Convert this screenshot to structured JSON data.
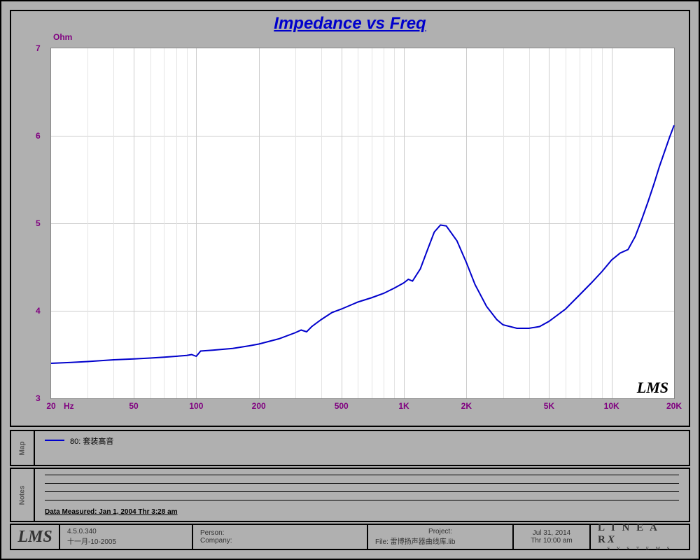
{
  "chart": {
    "type": "line",
    "title": "Impedance vs Freq",
    "ylabel": "Ohm",
    "xlabel_unit": "Hz",
    "x_scale": "log",
    "y_scale": "linear",
    "xlim": [
      20,
      20000
    ],
    "ylim": [
      3,
      7
    ],
    "ytick_step": 1,
    "x_major_ticks": [
      20,
      50,
      100,
      200,
      500,
      1000,
      2000,
      5000,
      10000,
      20000
    ],
    "x_tick_labels": [
      "20",
      "50",
      "100",
      "200",
      "500",
      "1K",
      "2K",
      "5K",
      "10K",
      "20K"
    ],
    "x_minor_ticks": [
      30,
      40,
      60,
      70,
      80,
      90,
      300,
      400,
      600,
      700,
      800,
      900,
      3000,
      4000,
      6000,
      7000,
      8000,
      9000
    ],
    "line_color": "#0000cc",
    "line_width": 2,
    "background_color": "#ffffff",
    "grid_color": "#cccccc",
    "minor_grid_color": "#e4e4e4",
    "axis_label_color": "#800080",
    "title_color": "#0000cc",
    "title_fontsize": 24,
    "tick_fontsize": 12,
    "watermark": "LMS",
    "series": {
      "name": "80: 套装高音",
      "data": [
        [
          20,
          3.4
        ],
        [
          25,
          3.41
        ],
        [
          30,
          3.42
        ],
        [
          40,
          3.44
        ],
        [
          50,
          3.45
        ],
        [
          60,
          3.46
        ],
        [
          70,
          3.47
        ],
        [
          80,
          3.48
        ],
        [
          90,
          3.49
        ],
        [
          95,
          3.5
        ],
        [
          100,
          3.48
        ],
        [
          105,
          3.54
        ],
        [
          120,
          3.55
        ],
        [
          150,
          3.57
        ],
        [
          180,
          3.6
        ],
        [
          200,
          3.62
        ],
        [
          250,
          3.68
        ],
        [
          300,
          3.75
        ],
        [
          320,
          3.78
        ],
        [
          340,
          3.76
        ],
        [
          360,
          3.82
        ],
        [
          400,
          3.9
        ],
        [
          450,
          3.98
        ],
        [
          500,
          4.02
        ],
        [
          600,
          4.1
        ],
        [
          700,
          4.15
        ],
        [
          800,
          4.2
        ],
        [
          900,
          4.26
        ],
        [
          1000,
          4.32
        ],
        [
          1050,
          4.36
        ],
        [
          1100,
          4.34
        ],
        [
          1200,
          4.48
        ],
        [
          1300,
          4.7
        ],
        [
          1400,
          4.9
        ],
        [
          1500,
          4.98
        ],
        [
          1600,
          4.97
        ],
        [
          1800,
          4.8
        ],
        [
          2000,
          4.55
        ],
        [
          2200,
          4.3
        ],
        [
          2500,
          4.05
        ],
        [
          2800,
          3.9
        ],
        [
          3000,
          3.84
        ],
        [
          3500,
          3.8
        ],
        [
          4000,
          3.8
        ],
        [
          4500,
          3.82
        ],
        [
          5000,
          3.88
        ],
        [
          6000,
          4.02
        ],
        [
          7000,
          4.18
        ],
        [
          8000,
          4.32
        ],
        [
          9000,
          4.45
        ],
        [
          10000,
          4.58
        ],
        [
          11000,
          4.66
        ],
        [
          12000,
          4.7
        ],
        [
          13000,
          4.85
        ],
        [
          14000,
          5.05
        ],
        [
          15000,
          5.25
        ],
        [
          16000,
          5.45
        ],
        [
          17000,
          5.65
        ],
        [
          18000,
          5.82
        ],
        [
          19000,
          5.98
        ],
        [
          20000,
          6.12
        ]
      ]
    }
  },
  "legend": {
    "tab_label": "Map",
    "item_label": "80: 套装高音"
  },
  "notes": {
    "tab_label": "Notes",
    "measured_text": "Data Measured: Jan  1, 2004  Thr  3:28 am"
  },
  "footer": {
    "logo": "LMS",
    "version_line1": "4.5.0.340",
    "version_line2": "十一月-10-2005",
    "person_label": "Person:",
    "company_label": "Company:",
    "project_label": "Project:",
    "file_label": "File: 雷博扬声器曲线库.lib",
    "date_line1": "Jul 31, 2014",
    "date_line2": "Thr 10:00 am",
    "brand_main": "LINEARX",
    "brand_sub": "S Y S T E M S"
  },
  "frame": {
    "outer_bg": "#b0b0b0",
    "border_color": "#000000"
  }
}
